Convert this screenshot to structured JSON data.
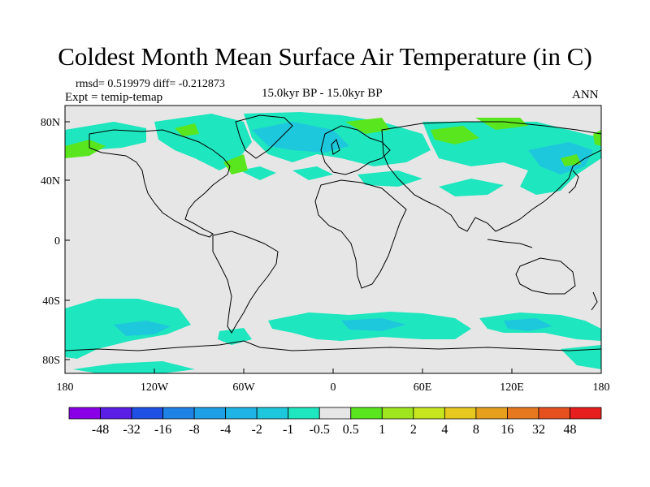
{
  "title": "Coldest Month Mean Surface Air Temperature (in C)",
  "stats_line": "rmsd= 0.519979 diff= -0.212873",
  "experiment_line": "Expt = temip-temap",
  "period_label": "15.0kyr BP - 15.0kyr BP",
  "season_label": "ANN",
  "lat_labels": [
    "80N",
    "40N",
    "0",
    "40S",
    "80S"
  ],
  "lon_labels": [
    "180",
    "120W",
    "60W",
    "0",
    "60E",
    "120E",
    "180"
  ],
  "colorbar": {
    "labels": [
      "-48",
      "-32",
      "-16",
      "-8",
      "-4",
      "-2",
      "-1",
      "-0.5",
      "0.5",
      "1",
      "2",
      "4",
      "8",
      "16",
      "32",
      "48"
    ],
    "colors": [
      "#8a00e6",
      "#5a1ee6",
      "#1e50e6",
      "#1e82e6",
      "#1ea0e6",
      "#1eb4e6",
      "#1ec8dc",
      "#1ee6be",
      "#e6e6e6",
      "#5ae61e",
      "#a0e61e",
      "#c8e61e",
      "#e6c81e",
      "#e6a01e",
      "#e6781e",
      "#e6501e",
      "#e61e1e"
    ]
  },
  "map_colors": {
    "background": "#e6e6e6",
    "negative_small": "#1ee6be",
    "negative_mid": "#1ec8dc",
    "positive_small": "#5ae61e",
    "positive_mid": "#a0e61e",
    "coast": "#000000"
  }
}
